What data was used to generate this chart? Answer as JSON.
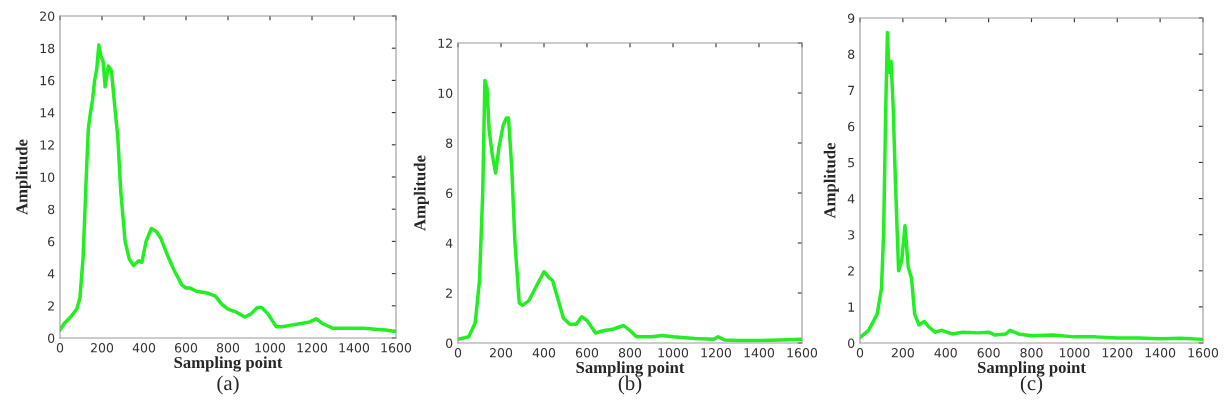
{
  "chart_data": [
    {
      "type": "line",
      "xlabel": "Sampling point",
      "ylabel": "Amplitude",
      "annotations": [
        "(a)"
      ],
      "xlim": [
        0,
        1600
      ],
      "xticks": [
        0,
        200,
        400,
        600,
        800,
        1000,
        1200,
        1400,
        1600
      ],
      "ylim": [
        0,
        20
      ],
      "yticks": [
        0,
        2,
        4,
        6,
        8,
        10,
        12,
        14,
        16,
        18,
        20
      ],
      "series": [
        {
          "color": "#22ee22",
          "x": [
            0,
            20,
            50,
            80,
            95,
            110,
            125,
            135,
            145,
            155,
            165,
            175,
            185,
            195,
            205,
            215,
            230,
            245,
            260,
            275,
            290,
            310,
            330,
            350,
            375,
            390,
            410,
            435,
            460,
            480,
            510,
            540,
            580,
            600,
            620,
            650,
            700,
            740,
            770,
            800,
            840,
            880,
            910,
            940,
            960,
            990,
            1030,
            1060,
            1100,
            1150,
            1190,
            1220,
            1250,
            1300,
            1350,
            1400,
            1450,
            1500,
            1550,
            1600
          ],
          "values": [
            0.5,
            0.9,
            1.3,
            1.8,
            2.5,
            5,
            10,
            13,
            14,
            14.8,
            16,
            16.7,
            18.2,
            17.5,
            17.2,
            15.6,
            16.9,
            16.6,
            14.5,
            12.5,
            9,
            6,
            4.9,
            4.5,
            4.8,
            4.7,
            6,
            6.8,
            6.6,
            6.2,
            5.2,
            4.3,
            3.3,
            3.1,
            3.1,
            2.9,
            2.8,
            2.6,
            2.1,
            1.8,
            1.6,
            1.3,
            1.5,
            1.9,
            1.9,
            1.5,
            0.7,
            0.7,
            0.8,
            0.9,
            1.0,
            1.2,
            0.9,
            0.6,
            0.6,
            0.6,
            0.6,
            0.55,
            0.5,
            0.4
          ]
        }
      ]
    },
    {
      "type": "line",
      "xlabel": "Sampling point",
      "ylabel": "Amplitude",
      "annotations": [
        "(b)"
      ],
      "xlim": [
        0,
        1600
      ],
      "xticks": [
        0,
        200,
        400,
        600,
        800,
        1000,
        1200,
        1400,
        1600
      ],
      "ylim": [
        0,
        12
      ],
      "yticks": [
        0,
        2,
        4,
        6,
        8,
        10,
        12
      ],
      "series": [
        {
          "color": "#22ee22",
          "x": [
            0,
            50,
            80,
            100,
            115,
            125,
            135,
            145,
            160,
            175,
            190,
            210,
            225,
            235,
            250,
            265,
            285,
            300,
            330,
            360,
            400,
            425,
            440,
            470,
            490,
            520,
            550,
            575,
            600,
            640,
            680,
            720,
            770,
            800,
            830,
            900,
            950,
            1000,
            1100,
            1190,
            1210,
            1240,
            1300,
            1400,
            1500,
            1600
          ],
          "values": [
            0.15,
            0.25,
            0.8,
            2.5,
            6,
            10.5,
            10.2,
            8.5,
            7.5,
            6.8,
            7.8,
            8.7,
            9,
            9,
            7,
            4,
            1.6,
            1.5,
            1.7,
            2.2,
            2.85,
            2.6,
            2.5,
            1.6,
            1.0,
            0.75,
            0.75,
            1.05,
            0.9,
            0.4,
            0.5,
            0.55,
            0.7,
            0.5,
            0.25,
            0.25,
            0.3,
            0.25,
            0.18,
            0.15,
            0.25,
            0.12,
            0.1,
            0.1,
            0.12,
            0.15
          ]
        }
      ]
    },
    {
      "type": "line",
      "xlabel": "Sampling point",
      "ylabel": "Amplitude",
      "annotations": [
        "(c)"
      ],
      "xlim": [
        0,
        1600
      ],
      "xticks": [
        0,
        200,
        400,
        600,
        800,
        1000,
        1200,
        1400,
        1600
      ],
      "ylim": [
        0,
        9
      ],
      "yticks": [
        0,
        1,
        2,
        3,
        4,
        5,
        6,
        7,
        8,
        9
      ],
      "series": [
        {
          "color": "#22ee22",
          "x": [
            0,
            40,
            80,
            100,
            110,
            120,
            128,
            135,
            145,
            155,
            165,
            180,
            195,
            210,
            225,
            240,
            255,
            275,
            300,
            320,
            350,
            380,
            430,
            480,
            550,
            600,
            630,
            680,
            700,
            740,
            800,
            900,
            1000,
            1100,
            1200,
            1300,
            1400,
            1500,
            1600
          ],
          "values": [
            0.15,
            0.35,
            0.8,
            1.5,
            3,
            6.5,
            8.6,
            7.5,
            7.8,
            6.5,
            4.5,
            2.0,
            2.3,
            3.25,
            2.1,
            1.8,
            0.8,
            0.5,
            0.6,
            0.45,
            0.3,
            0.35,
            0.25,
            0.3,
            0.28,
            0.3,
            0.22,
            0.25,
            0.35,
            0.25,
            0.2,
            0.22,
            0.17,
            0.17,
            0.14,
            0.14,
            0.12,
            0.13,
            0.1
          ]
        }
      ]
    }
  ]
}
